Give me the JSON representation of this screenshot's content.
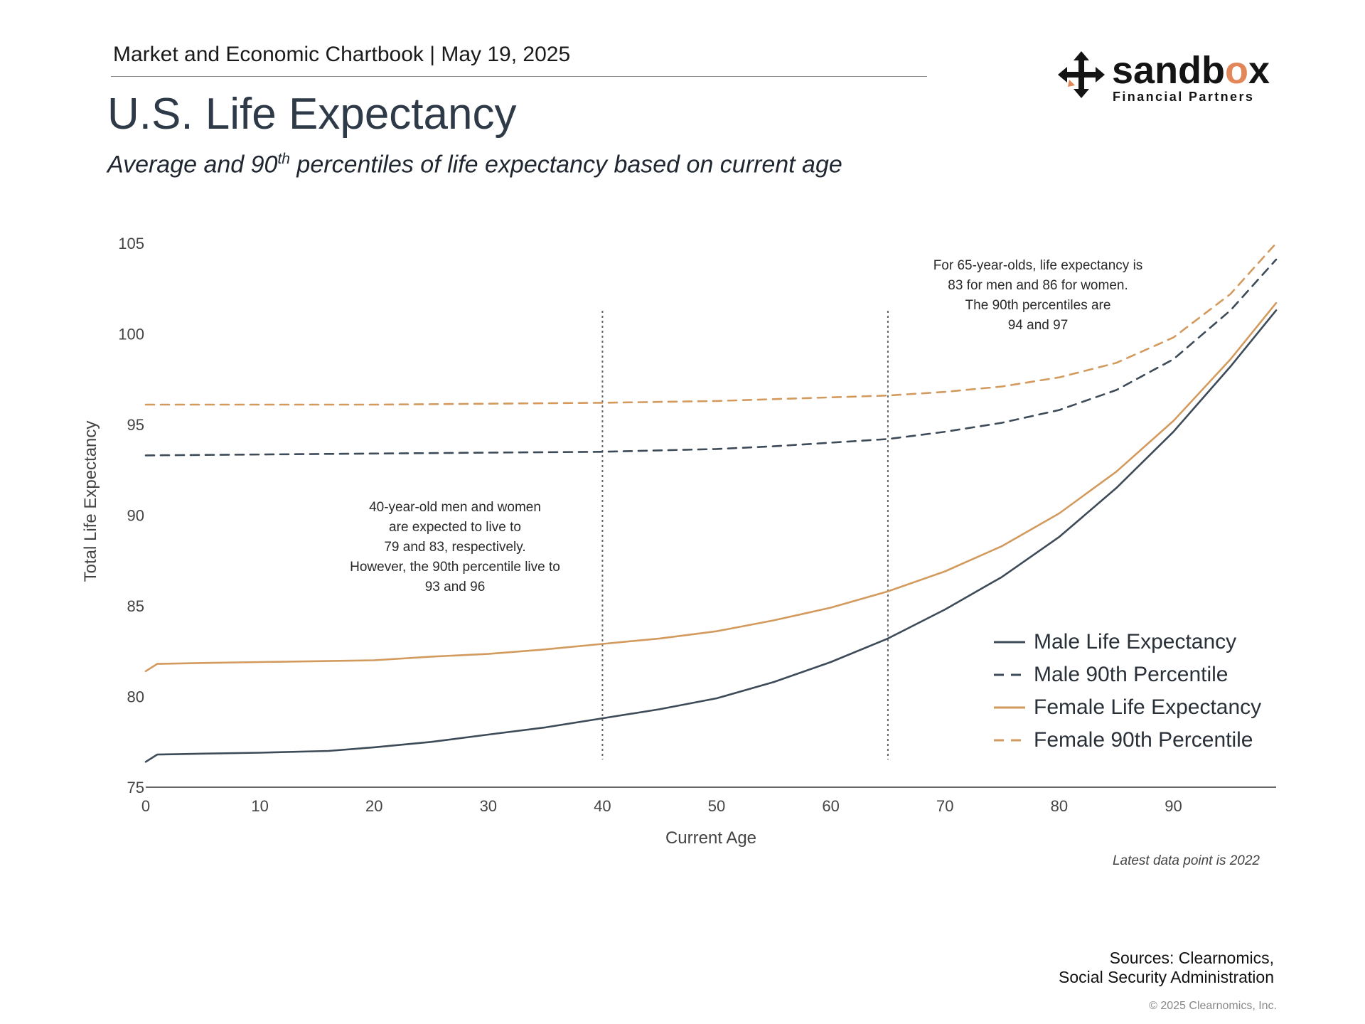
{
  "header": {
    "text": "Market and Economic Chartbook | May 19, 2025",
    "title": "U.S. Life Expectancy",
    "subtitle_pre": "Average and 90",
    "subtitle_sup": "th",
    "subtitle_post": " percentiles of life expectancy based on current age"
  },
  "logo": {
    "word_a": "sandb",
    "word_o": "o",
    "word_b": "x",
    "sub": "Financial Partners"
  },
  "annotations": {
    "age40": [
      "40-year-old men and women",
      "are expected to live to",
      "79 and 83, respectively.",
      "However, the 90th percentile live to",
      "93 and 96"
    ],
    "age65": [
      "For 65-year-olds, life expectancy is",
      "83 for men and 86 for women.",
      "The 90th percentiles are",
      "94 and 97"
    ]
  },
  "footer": {
    "latest": "Latest data point is 2022",
    "sources_1": "Sources: Clearnomics,",
    "sources_2": "Social Security Administration",
    "copyright": "© 2025 Clearnomics, Inc."
  },
  "colors": {
    "male": "#3d4a58",
    "female": "#d39a5e",
    "axis": "#333333",
    "refline": "#666666"
  },
  "chart_data": {
    "type": "line",
    "xlabel": "Current Age",
    "ylabel": "Total Life Expectancy",
    "xlim": [
      0,
      99
    ],
    "ylim": [
      75,
      105
    ],
    "xticks": [
      0,
      10,
      20,
      30,
      40,
      50,
      60,
      70,
      80,
      90
    ],
    "yticks": [
      75,
      80,
      85,
      90,
      95,
      100,
      105
    ],
    "reference_lines_x": [
      40,
      65
    ],
    "legend_position": "bottom-right",
    "grid": false,
    "series": [
      {
        "name": "Male Life Expectancy",
        "style": "solid",
        "color": "#3d4a58",
        "x": [
          0,
          1,
          5,
          10,
          16,
          20,
          25,
          30,
          35,
          40,
          45,
          50,
          55,
          60,
          65,
          70,
          75,
          80,
          85,
          90,
          95,
          99
        ],
        "y": [
          76.4,
          76.8,
          76.85,
          76.9,
          77.0,
          77.2,
          77.5,
          77.9,
          78.3,
          78.8,
          79.3,
          79.9,
          80.8,
          81.9,
          83.2,
          84.8,
          86.6,
          88.8,
          91.5,
          94.6,
          98.2,
          101.3
        ]
      },
      {
        "name": "Male 90th Percentile",
        "style": "dashed",
        "color": "#3d4a58",
        "x": [
          0,
          10,
          20,
          30,
          40,
          50,
          55,
          60,
          65,
          70,
          75,
          80,
          85,
          90,
          95,
          99
        ],
        "y": [
          93.3,
          93.35,
          93.4,
          93.45,
          93.5,
          93.65,
          93.8,
          94.0,
          94.2,
          94.6,
          95.1,
          95.8,
          96.9,
          98.6,
          101.3,
          104.1
        ]
      },
      {
        "name": "Female Life Expectancy",
        "style": "solid",
        "color": "#d39a5e",
        "x": [
          0,
          1,
          5,
          10,
          15,
          20,
          25,
          30,
          35,
          40,
          45,
          50,
          55,
          60,
          65,
          70,
          75,
          80,
          85,
          90,
          95,
          99
        ],
        "y": [
          81.4,
          81.8,
          81.85,
          81.9,
          81.95,
          82.0,
          82.2,
          82.35,
          82.6,
          82.9,
          83.2,
          83.6,
          84.2,
          84.9,
          85.8,
          86.9,
          88.3,
          90.1,
          92.4,
          95.2,
          98.6,
          101.7
        ]
      },
      {
        "name": "Female 90th Percentile",
        "style": "dashed",
        "color": "#d39a5e",
        "x": [
          0,
          10,
          20,
          30,
          40,
          50,
          55,
          60,
          65,
          70,
          75,
          80,
          85,
          90,
          95,
          99
        ],
        "y": [
          96.1,
          96.1,
          96.1,
          96.15,
          96.2,
          96.3,
          96.4,
          96.5,
          96.6,
          96.8,
          97.1,
          97.6,
          98.4,
          99.8,
          102.2,
          105.0
        ]
      }
    ]
  }
}
